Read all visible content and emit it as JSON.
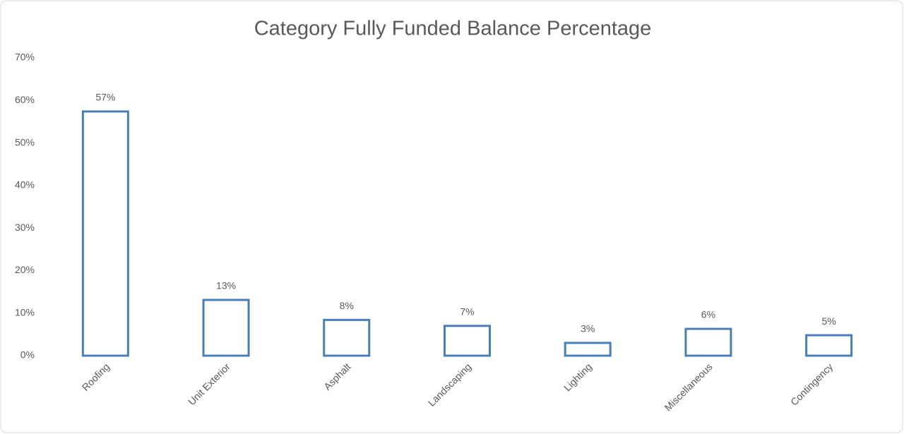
{
  "chart_data": {
    "type": "bar",
    "title": "Category Fully Funded Balance Percentage",
    "categories": [
      "Roofing",
      "Unit Exterior",
      "Asphalt",
      "Landscaping",
      "Lighting",
      "Miscellaneous",
      "Contingency"
    ],
    "values": [
      57.4,
      13.1,
      8.4,
      7.0,
      3.0,
      6.3,
      4.8
    ],
    "value_labels": [
      "57%",
      "13%",
      "8%",
      "7%",
      "3%",
      "6%",
      "5%"
    ],
    "color": "#4a7ebb",
    "ylim": [
      0,
      70
    ],
    "yticks": [
      {
        "value": 0,
        "label": "0%"
      },
      {
        "value": 10,
        "label": "10%"
      },
      {
        "value": 20,
        "label": "20%"
      },
      {
        "value": 30,
        "label": "30%"
      },
      {
        "value": 40,
        "label": "40%"
      },
      {
        "value": 50,
        "label": "50%"
      },
      {
        "value": 60,
        "label": "60%"
      },
      {
        "value": 70,
        "label": "70%"
      }
    ],
    "grid": false
  }
}
